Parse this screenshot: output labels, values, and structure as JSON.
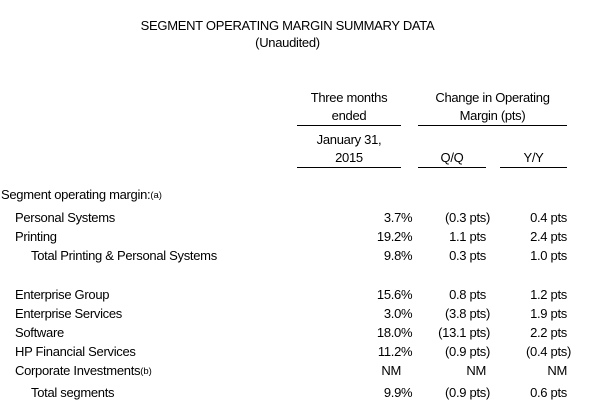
{
  "page": {
    "title": "SEGMENT OPERATING MARGIN SUMMARY DATA",
    "subtitle": "(Unaudited)"
  },
  "table": {
    "headers": {
      "period_group_line1": "Three months",
      "period_group_line2": "ended",
      "period_sub_line1": "January 31,",
      "period_sub_line2": "2015",
      "change_group_line1": "Change in Operating",
      "change_group_line2": "Margin (pts)",
      "qq_label": "Q/Q",
      "yy_label": "Y/Y"
    },
    "section": {
      "label": "Segment operating margin:",
      "note": "(a)"
    },
    "rows": [
      {
        "label": "Personal Systems",
        "note": "",
        "margin": {
          "v": "3.7",
          "s": "%"
        },
        "qq": {
          "v": "(0.3 pts",
          "s": ")"
        },
        "yy": {
          "v": "0.4 pts",
          "s": ""
        }
      },
      {
        "label": "Printing",
        "note": "",
        "margin": {
          "v": "19.2",
          "s": "%"
        },
        "qq": {
          "v": "1.1 pts",
          "s": ""
        },
        "yy": {
          "v": "2.4 pts",
          "s": ""
        }
      },
      {
        "label": "Total Printing & Personal Systems",
        "note": "",
        "margin": {
          "v": "9.8",
          "s": "%"
        },
        "qq": {
          "v": "0.3 pts",
          "s": ""
        },
        "yy": {
          "v": "1.0 pts",
          "s": ""
        }
      },
      {
        "label": "Enterprise Group",
        "note": "",
        "margin": {
          "v": "15.6",
          "s": "%"
        },
        "qq": {
          "v": "0.8 pts",
          "s": ""
        },
        "yy": {
          "v": "1.2 pts",
          "s": ""
        }
      },
      {
        "label": "Enterprise Services",
        "note": "",
        "margin": {
          "v": "3.0",
          "s": "%"
        },
        "qq": {
          "v": "(3.8 pts",
          "s": ")"
        },
        "yy": {
          "v": "1.9 pts",
          "s": ""
        }
      },
      {
        "label": "Software",
        "note": "",
        "margin": {
          "v": "18.0",
          "s": "%"
        },
        "qq": {
          "v": "(13.1 pts",
          "s": ")"
        },
        "yy": {
          "v": "2.2 pts",
          "s": ""
        }
      },
      {
        "label": "HP Financial Services",
        "note": "",
        "margin": {
          "v": "11.2",
          "s": "%"
        },
        "qq": {
          "v": "(0.9 pts",
          "s": ")"
        },
        "yy": {
          "v": "(0.4 pts",
          "s": ")"
        }
      },
      {
        "label": "Corporate Investments",
        "note": "(b)",
        "margin": {
          "v": "NM",
          "s": ""
        },
        "qq": {
          "v": "NM",
          "s": ""
        },
        "yy": {
          "v": "NM",
          "s": ""
        }
      },
      {
        "label": "Total segments",
        "note": "",
        "margin": {
          "v": "9.9",
          "s": "%"
        },
        "qq": {
          "v": "(0.9 pts",
          "s": ")"
        },
        "yy": {
          "v": "0.6 pts",
          "s": ""
        }
      }
    ]
  }
}
